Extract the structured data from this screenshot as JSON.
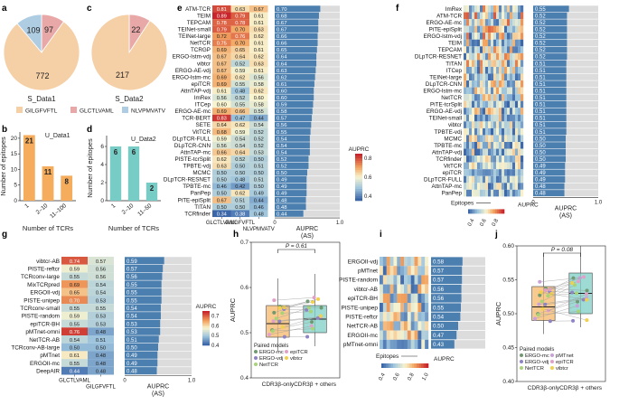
{
  "panels": {
    "a": "a",
    "b": "b",
    "c": "c",
    "d": "d",
    "e": "e",
    "f": "f",
    "g": "g",
    "h": "h",
    "i": "i",
    "j": "j"
  },
  "colors": {
    "gilg": "#f5cfa6",
    "glct": "#e8a8a8",
    "nlvp": "#aecde3",
    "bar_b": "#f5ad5d",
    "bar_d": "#77ccc6",
    "auprc_bar": "#4a7fb0",
    "auprc_bg": "#dcdcdc",
    "box_b": "#f6b86a",
    "box_t": "#7ccfc6",
    "cmap_low": "#3b66a8",
    "cmap_mid": "#f8f4d8",
    "cmap_high": "#cc2b2b"
  },
  "chart_data": [
    {
      "panel": "a",
      "type": "pie",
      "title": "S_Data1",
      "slices": [
        {
          "label": "GILGFVFTL",
          "value": 772
        },
        {
          "label": "GLCTLVAML",
          "value": 97
        },
        {
          "label": "NLVPMVATV",
          "value": 109
        }
      ]
    },
    {
      "panel": "c",
      "type": "pie",
      "title": "S_Data2",
      "slices": [
        {
          "label": "GILGFVFTL",
          "value": 217
        },
        {
          "label": "GLCTLVAML",
          "value": 22
        },
        {
          "label": "NLVPMVATV",
          "value": 0
        }
      ]
    },
    {
      "panel": "b",
      "type": "bar",
      "title": "U_Data1",
      "categories": [
        "1",
        "2–10",
        "11–100"
      ],
      "values": [
        21,
        11,
        8
      ],
      "xlabel": "Number of TCRs",
      "ylabel": "Number of epitopes",
      "ylim": [
        0,
        22
      ],
      "yticks": [
        "0",
        "5",
        "10",
        "15",
        "20"
      ]
    },
    {
      "panel": "d",
      "type": "bar",
      "title": "U_Data2",
      "categories": [
        "1",
        "2–10",
        "11–50"
      ],
      "values": [
        6,
        6,
        2
      ],
      "xlabel": "Number of TCRs",
      "ylabel": "Number of epitopes",
      "ylim": [
        0,
        7.2
      ],
      "yticks": [
        "0",
        "2",
        "4",
        "6"
      ]
    },
    {
      "panel": "e",
      "type": "heatmap",
      "columns": [
        "GLCTLVAML",
        "GILGFVFTL",
        "NLVPMVATV"
      ],
      "rows": [
        "ATM-TCR",
        "TEIM",
        "TEPCAM",
        "TEINet-small",
        "TEINet-large",
        "NetTCR",
        "TCRGP",
        "ERGO-lstm-vdj",
        "vibtcr",
        "ERGO-AE-vdj",
        "ERGO-lstm-mc",
        "epiTCR",
        "AttnTAP-vdj",
        "ImRex",
        "ITCep",
        "ERGO-AE-mc",
        "TCR-BERT",
        "SETE",
        "VitTCR",
        "DLpTCR-FULL",
        "DLpTCR-CNN",
        "AttnTAP-mc",
        "PISTE-tcrSplit",
        "TPBTE-vdj",
        "MCMC",
        "DLpTCR-RESNET",
        "TPBTE-mc",
        "PanPep",
        "PiTE-epiSplit",
        "TITAN",
        "TCRfinder"
      ],
      "values": [
        [
          0.81,
          0.63,
          0.67
        ],
        [
          0.89,
          0.79,
          0.61
        ],
        [
          0.78,
          0.78,
          0.61
        ],
        [
          0.79,
          0.7,
          0.63
        ],
        [
          0.72,
          0.76,
          0.62
        ],
        [
          0.75,
          0.7,
          0.61
        ],
        [
          0.69,
          0.65,
          0.61
        ],
        [
          0.67,
          0.64,
          0.62
        ],
        [
          0.67,
          0.52,
          0.63
        ],
        [
          0.67,
          0.59,
          0.61
        ],
        [
          0.69,
          0.62,
          0.56
        ],
        [
          0.69,
          0.55,
          0.58
        ],
        [
          0.61,
          0.48,
          0.62
        ],
        [
          0.56,
          0.52,
          0.6
        ],
        [
          0.6,
          0.55,
          0.58
        ],
        [
          0.69,
          0.66,
          0.55
        ],
        [
          0.83,
          0.47,
          0.44
        ],
        [
          0.64,
          0.62,
          0.54
        ],
        [
          0.68,
          0.59,
          0.52
        ],
        [
          0.59,
          0.54,
          0.52
        ],
        [
          0.56,
          0.54,
          0.52
        ],
        [
          0.66,
          0.64,
          0.53
        ],
        [
          0.62,
          0.52,
          0.5
        ],
        [
          0.63,
          0.5,
          0.51
        ],
        [
          0.5,
          0.5,
          0.5
        ],
        [
          0.5,
          0.48,
          0.51
        ],
        [
          0.46,
          0.42,
          0.5
        ],
        [
          0.5,
          0.62,
          0.49
        ],
        [
          0.67,
          0.51,
          0.44
        ],
        [
          0.5,
          0.5,
          0.46
        ],
        [
          0.34,
          0.38,
          0.48
        ]
      ],
      "auprc_as": [
        0.7,
        0.68,
        0.67,
        0.67,
        0.66,
        0.66,
        0.65,
        0.64,
        0.64,
        0.63,
        0.62,
        0.61,
        0.6,
        0.6,
        0.59,
        0.58,
        0.57,
        0.56,
        0.55,
        0.54,
        0.54,
        0.54,
        0.52,
        0.52,
        0.5,
        0.49,
        0.49,
        0.49,
        0.48,
        0.48,
        0.44
      ],
      "colorbar_title": "AUPRC",
      "colorbar_ticks": [
        "0.4",
        "0.6",
        "0.8"
      ],
      "bar_axis_label": "AUPRC\n(AS)",
      "bar_axis_ticks": [
        "0",
        "1.0"
      ]
    },
    {
      "panel": "f",
      "type": "heatmap",
      "rows": [
        "ImRex",
        "ATM-TCR",
        "ERGO-AE-mc",
        "PiTE-epiSplit",
        "ERGO-lstm-vdj",
        "TEIM",
        "TEPCAM",
        "DLpTCR-RESNET",
        "TITAN",
        "ITCep",
        "TEINet-large",
        "DLpTCR-CNN",
        "ERGO-lstm-mc",
        "NetTCR",
        "PiTE-tcrSplit",
        "ERGO-AE-vdj",
        "TEINet-small",
        "vibtcr",
        "TPBTE-vdj",
        "MCMC",
        "TPBTE-mc",
        "AttnTAP-vdj",
        "TCRfinder",
        "VitTCR",
        "epiTCR",
        "DLpTCR-FULL",
        "AttnTAP-mc",
        "PanPep"
      ],
      "auprc_as": [
        0.55,
        0.52,
        0.52,
        0.52,
        0.52,
        0.52,
        0.52,
        0.52,
        0.51,
        0.51,
        0.51,
        0.51,
        0.51,
        0.51,
        0.51,
        0.51,
        0.51,
        0.51,
        0.51,
        0.5,
        0.5,
        0.5,
        0.5,
        0.49,
        0.49,
        0.49,
        0.48,
        0.48
      ],
      "xlabel": "Epitopes",
      "colorbar_title": "AUPRC",
      "colorbar_ticks": [
        "0.4",
        "0.6",
        "0.8"
      ],
      "bar_axis_label": "AUPRC\n(AS)",
      "bar_axis_ticks": [
        "0",
        "1.0"
      ]
    },
    {
      "panel": "g",
      "type": "heatmap",
      "columns": [
        "GLCTLVAML",
        "GILGFVFTL"
      ],
      "rows": [
        "vibtcr-AB",
        "PISTE-reftcr",
        "TCRconv-large",
        "MixTCRpred",
        "ERGOII-vdj",
        "PISTE-unipep",
        "TCRconv-small",
        "PISTE-random",
        "epiTCR-BH",
        "pMTnet-omni",
        "NetTCR-AB",
        "TCRconv-AB-large",
        "pMTnet",
        "ERGOII-mc",
        "DeepAIR"
      ],
      "values": [
        [
          0.74,
          0.57
        ],
        [
          0.59,
          0.56
        ],
        [
          0.55,
          0.56
        ],
        [
          0.69,
          0.54
        ],
        [
          0.65,
          0.54
        ],
        [
          0.7,
          0.53
        ],
        [
          0.55,
          0.55
        ],
        [
          0.59,
          0.53
        ],
        [
          0.55,
          0.53
        ],
        [
          0.76,
          0.48
        ],
        [
          0.54,
          0.51
        ],
        [
          0.5,
          0.5
        ],
        [
          0.61,
          0.48
        ],
        [
          0.55,
          0.48
        ],
        [
          0.44,
          0.48
        ]
      ],
      "auprc_as": [
        0.59,
        0.57,
        0.56,
        0.55,
        0.55,
        0.55,
        0.54,
        0.54,
        0.53,
        0.53,
        0.51,
        0.5,
        0.49,
        0.49,
        0.48
      ],
      "colorbar_title": "AUPRC",
      "colorbar_ticks": [
        "0.4",
        "0.5",
        "0.6",
        "0.7"
      ],
      "bar_axis_label": "AUPRC\n(AS)",
      "bar_axis_ticks": [
        "0",
        "1.0"
      ]
    },
    {
      "panel": "h",
      "type": "box",
      "categories": [
        "CDR3β-only",
        "CDR3β + others"
      ],
      "medians": [
        0.52,
        0.53
      ],
      "q1": [
        0.49,
        0.5
      ],
      "q3": [
        0.56,
        0.56
      ],
      "whisk": [
        [
          0.46,
          0.62
        ],
        [
          0.47,
          0.63
        ]
      ],
      "ylabel": "AUPRC",
      "ylim": [
        0.4,
        0.7
      ],
      "yticks": [
        "0.4",
        "0.5",
        "0.6",
        "0.7"
      ],
      "pvalue": "P = 0.61",
      "legend_title": "Paired models",
      "legend": [
        {
          "label": "ERGO-mc",
          "color": "#6f9a6f"
        },
        {
          "label": "epiTCR",
          "color": "#e2a0c9"
        },
        {
          "label": "ERGO-vdj",
          "color": "#8d83c5"
        },
        {
          "label": "vibtcr",
          "color": "#f2d04a"
        },
        {
          "label": "NetTCR",
          "color": "#a8d379"
        }
      ]
    },
    {
      "panel": "i",
      "type": "heatmap",
      "rows": [
        "ERGOII-vdj",
        "pMTnet",
        "PISTE-random",
        "vibtcr-AB",
        "epiTCR-BH",
        "PISTE-unipep",
        "PISTE-reftcr",
        "NetTCR-AB",
        "ERGOII-mc",
        "pMTnet-omni"
      ],
      "auprc_as": [
        0.58,
        0.57,
        0.57,
        0.56,
        0.56,
        0.55,
        0.54,
        0.5,
        0.47,
        0.43
      ],
      "xlabel": "Epitopes",
      "colorbar_title": "AUPRC",
      "colorbar_ticks": [
        "0.4",
        "0.6",
        "0.8",
        "1.0"
      ]
    },
    {
      "panel": "j",
      "type": "box",
      "categories": [
        "CDR3β-only",
        "CDR3β + others"
      ],
      "medians": [
        0.51,
        0.53
      ],
      "q1": [
        0.49,
        0.5
      ],
      "q3": [
        0.54,
        0.56
      ],
      "whisk": [
        [
          0.47,
          0.59
        ],
        [
          0.48,
          0.6
        ]
      ],
      "ylabel": "AUPRC",
      "ylim": [
        0.4,
        0.6
      ],
      "yticks": [
        "0.40",
        "0.45",
        "0.50",
        "0.55",
        "0.60"
      ],
      "pvalue": "P = 0.08",
      "legend_title": "Paired models",
      "legend": [
        {
          "label": "ERGO-mc",
          "color": "#6f9a6f"
        },
        {
          "label": "pMTnet",
          "color": "#c9a0d8"
        },
        {
          "label": "ERGO-vdj",
          "color": "#8d83c5"
        },
        {
          "label": "epiTCR",
          "color": "#e2a0c9"
        },
        {
          "label": "NetTCR",
          "color": "#a8d379"
        },
        {
          "label": "vibtcr",
          "color": "#f2d04a"
        }
      ]
    }
  ]
}
